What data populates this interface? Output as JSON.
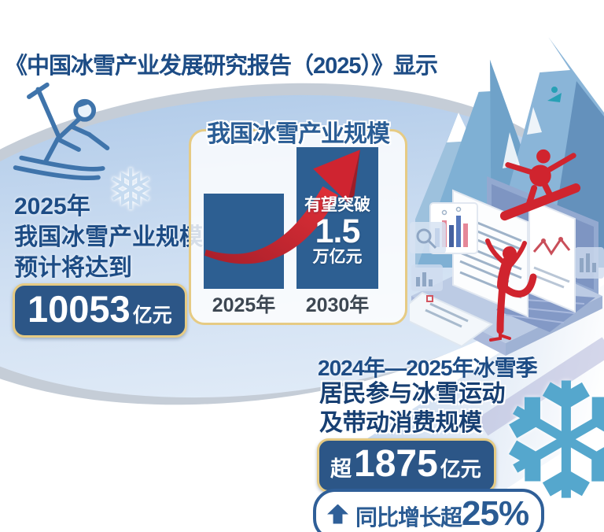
{
  "header": {
    "title": "《中国冰雪产业发展研究报告（2025）》显示"
  },
  "left_panel": {
    "lines": [
      "2025年",
      "我国冰雪产业规模",
      "预计将达到"
    ],
    "value_box": {
      "value": "10053",
      "unit": "亿元"
    }
  },
  "chart_data": {
    "type": "bar",
    "title": "我国冰雪产业规模",
    "categories": [
      "2025年",
      "2030年"
    ],
    "values": [
      10053,
      15000
    ],
    "unit": "亿元",
    "bar_color": "#2d5f92",
    "grid": false,
    "annotation": {
      "applies_to": "2030年",
      "line1": "有望突破",
      "value": "1.5",
      "line2": "万亿元"
    }
  },
  "bottom_panel": {
    "season": "2024年—2025年冰雪季",
    "lines": [
      "居民参与冰雪运动",
      "及带动消费规模"
    ],
    "value_box": {
      "prefix": "超",
      "value": "1875",
      "unit": "亿元"
    },
    "growth": {
      "label": "同比增长超",
      "value": "25%"
    }
  },
  "icons": {
    "snowflake_small": "❅",
    "snowflake_big": "❆"
  },
  "colors": {
    "navy_text": "#1d4c85",
    "box_blue": "#2c5687",
    "gold_border": "#e6cb84",
    "bar_blue": "#2d5f92",
    "accent_red": "#cf2430",
    "blob_blue": "#bcd2ec"
  }
}
